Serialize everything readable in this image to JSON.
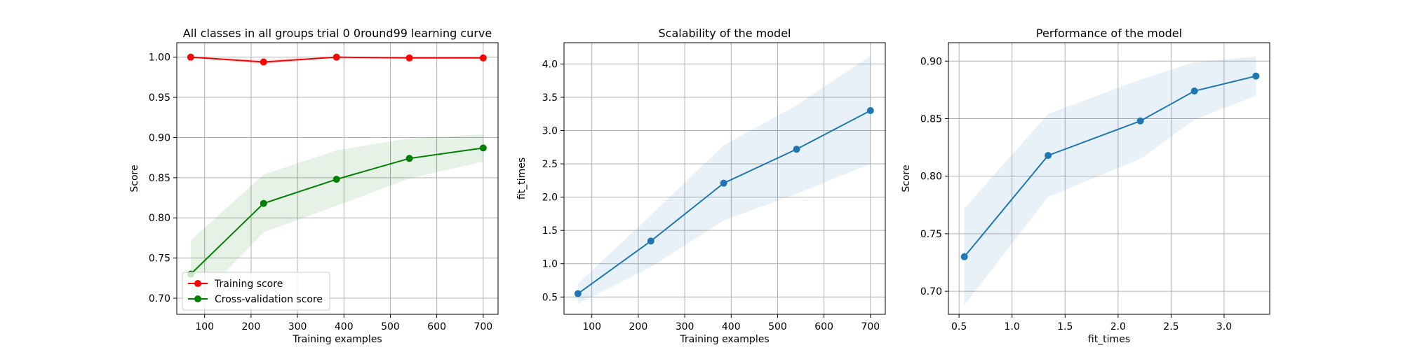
{
  "chart_data": [
    {
      "type": "line",
      "title": "All classes in all groups trial 0 0round99 learning curve",
      "xlabel": "Training examples",
      "ylabel": "Score",
      "xlim": [
        40,
        732
      ],
      "ylim": [
        0.68,
        1.018
      ],
      "xticks": [
        100,
        200,
        300,
        400,
        500,
        600,
        700
      ],
      "yticks": [
        0.7,
        0.75,
        0.8,
        0.85,
        0.9,
        0.95,
        1.0
      ],
      "grid": true,
      "legend": "lower-left",
      "series": [
        {
          "name": "Training score",
          "color": "#ff0000",
          "x": [
            70,
            227,
            384,
            541,
            700
          ],
          "values": [
            1.0,
            0.994,
            1.0,
            0.999,
            0.999
          ],
          "band_lower": [
            1.0,
            0.991,
            1.0,
            0.999,
            0.998
          ],
          "band_upper": [
            1.0,
            0.997,
            1.0,
            0.999,
            1.0
          ]
        },
        {
          "name": "Cross-validation score",
          "color": "#008000",
          "x": [
            70,
            227,
            384,
            541,
            700
          ],
          "values": [
            0.73,
            0.818,
            0.848,
            0.874,
            0.887
          ],
          "band_lower": [
            0.688,
            0.782,
            0.815,
            0.849,
            0.87
          ],
          "band_upper": [
            0.772,
            0.854,
            0.884,
            0.899,
            0.904
          ]
        }
      ]
    },
    {
      "type": "line",
      "title": "Scalability of the model",
      "xlabel": "Training examples",
      "ylabel": "fit_times",
      "xlim": [
        40,
        732
      ],
      "ylim": [
        0.24,
        4.32
      ],
      "xticks": [
        100,
        200,
        300,
        400,
        500,
        600,
        700
      ],
      "yticks": [
        0.5,
        1.0,
        1.5,
        2.0,
        2.5,
        3.0,
        3.5,
        4.0
      ],
      "grid": true,
      "series": [
        {
          "color": "#1f77b4",
          "x": [
            70,
            227,
            384,
            541,
            700
          ],
          "values": [
            0.55,
            1.34,
            2.21,
            2.72,
            3.3
          ],
          "band_lower": [
            0.4,
            0.95,
            1.65,
            2.05,
            2.5
          ],
          "band_upper": [
            0.7,
            1.73,
            2.78,
            3.38,
            4.12
          ]
        }
      ]
    },
    {
      "type": "line",
      "title": "Performance of the model",
      "xlabel": "fit_times",
      "ylabel": "Score",
      "xlim": [
        0.4,
        3.43
      ],
      "ylim": [
        0.68,
        0.916
      ],
      "xticks": [
        0.5,
        1.0,
        1.5,
        2.0,
        2.5,
        3.0
      ],
      "yticks": [
        0.7,
        0.75,
        0.8,
        0.85,
        0.9
      ],
      "grid": true,
      "series": [
        {
          "color": "#1f77b4",
          "x": [
            0.55,
            1.34,
            2.21,
            2.72,
            3.3
          ],
          "values": [
            0.73,
            0.818,
            0.848,
            0.874,
            0.887
          ],
          "band_lower": [
            0.688,
            0.782,
            0.815,
            0.849,
            0.87
          ],
          "band_upper": [
            0.772,
            0.854,
            0.884,
            0.899,
            0.904
          ]
        }
      ]
    }
  ]
}
